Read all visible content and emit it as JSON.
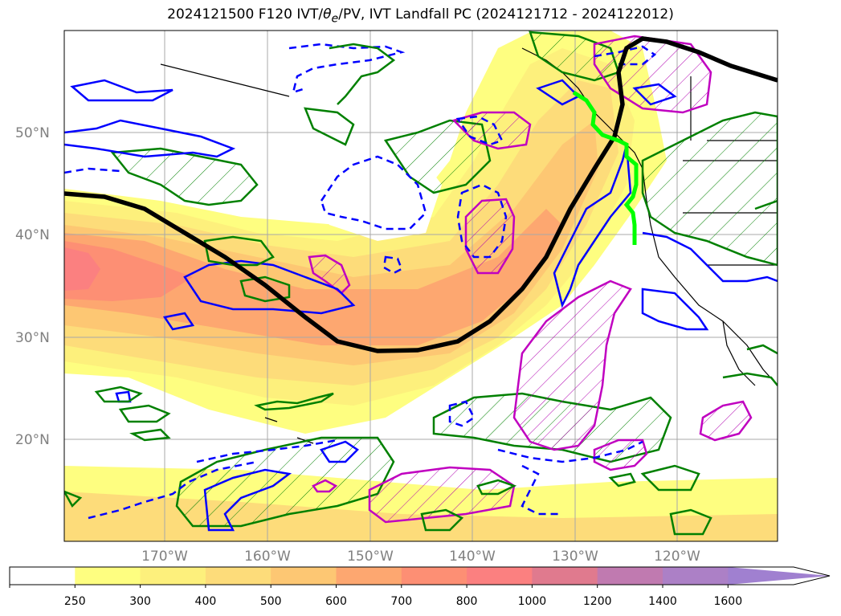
{
  "title": {
    "prefix": "2024121500 F120 IVT/",
    "theta": "θ",
    "theta_sub": "e",
    "suffix": "/PV, IVT Landfall PC (2024121712 - 2024122012)"
  },
  "map": {
    "lat_labels": [
      "50°N",
      "40°N",
      "30°N",
      "20°N"
    ],
    "lon_labels": [
      "170°W",
      "160°W",
      "150°W",
      "140°W",
      "130°W",
      "120°W"
    ],
    "colors": {
      "pv_line": "#0000ff",
      "theta_line": "#008000",
      "pc_line": "#c000c0",
      "jet_line": "#000000",
      "landfall_line": "#00ff00",
      "coast_line": "#000000"
    }
  },
  "colorbar": {
    "ticks": [
      "250",
      "300",
      "400",
      "500",
      "600",
      "700",
      "800",
      "1000",
      "1200",
      "1400",
      "1600"
    ],
    "colors": [
      "#ffffff",
      "#fefe80",
      "#fdf07c",
      "#fddc7a",
      "#fdc773",
      "#fda770",
      "#fd8f74",
      "#fb8080",
      "#e07a8e",
      "#c07ab0",
      "#ac80c6",
      "#a080d0"
    ]
  }
}
